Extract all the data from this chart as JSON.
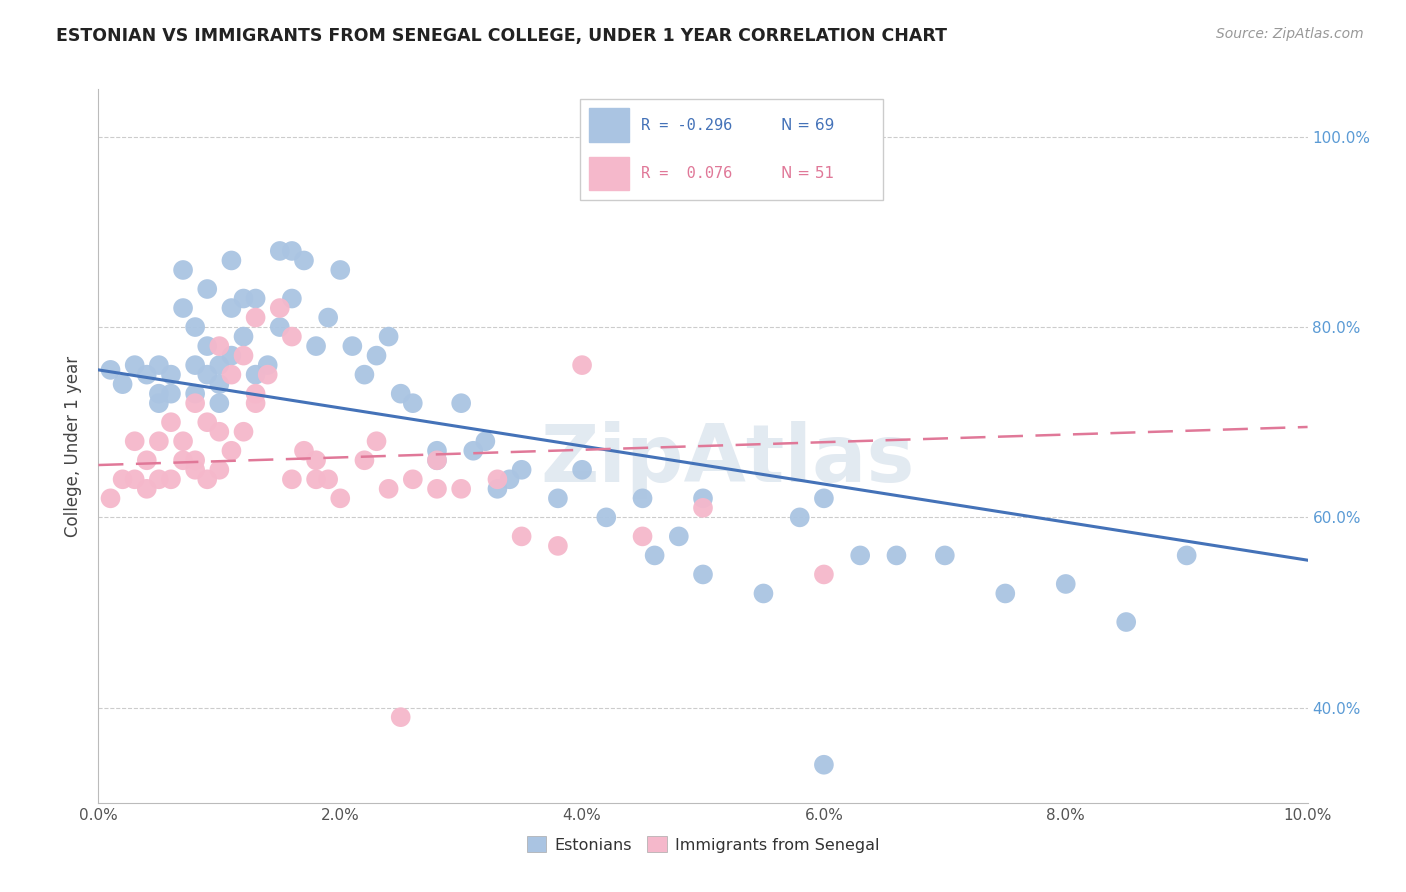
{
  "title": "ESTONIAN VS IMMIGRANTS FROM SENEGAL COLLEGE, UNDER 1 YEAR CORRELATION CHART",
  "source": "Source: ZipAtlas.com",
  "ylabel_label": "College, Under 1 year",
  "xlim": [
    0.0,
    0.1
  ],
  "ylim": [
    0.3,
    1.05
  ],
  "ylabel_ticks": [
    0.4,
    0.6,
    0.8,
    1.0
  ],
  "ylabel_tick_labels": [
    "40.0%",
    "60.0%",
    "80.0%",
    "100.0%"
  ],
  "xlabel_ticks": [
    0.0,
    0.02,
    0.04,
    0.06,
    0.08,
    0.1
  ],
  "xlabel_tick_labels": [
    "0.0%",
    "2.0%",
    "4.0%",
    "6.0%",
    "8.0%",
    "10.0%"
  ],
  "legend_labels": [
    "Estonians",
    "Immigrants from Senegal"
  ],
  "legend_R_blue": "R = -0.296",
  "legend_R_pink": "R =  0.076",
  "legend_N_blue": "N = 69",
  "legend_N_pink": "N = 51",
  "blue_color": "#aac4e2",
  "pink_color": "#f5b8cb",
  "blue_line_color": "#4472b8",
  "pink_line_color": "#e07898",
  "watermark": "ZipAtlas",
  "watermark_color": "#d0dce8",
  "figsize": [
    14.06,
    8.92
  ],
  "dpi": 100,
  "blue_scatter_x": [
    0.001,
    0.002,
    0.003,
    0.004,
    0.005,
    0.005,
    0.005,
    0.006,
    0.006,
    0.007,
    0.007,
    0.008,
    0.008,
    0.008,
    0.009,
    0.009,
    0.009,
    0.01,
    0.01,
    0.01,
    0.011,
    0.011,
    0.011,
    0.012,
    0.012,
    0.013,
    0.013,
    0.014,
    0.015,
    0.015,
    0.016,
    0.016,
    0.017,
    0.018,
    0.019,
    0.02,
    0.021,
    0.022,
    0.023,
    0.024,
    0.025,
    0.026,
    0.028,
    0.03,
    0.031,
    0.033,
    0.035,
    0.038,
    0.04,
    0.042,
    0.045,
    0.048,
    0.05,
    0.055,
    0.058,
    0.06,
    0.063,
    0.066,
    0.07,
    0.075,
    0.08,
    0.085,
    0.09,
    0.032,
    0.028,
    0.034,
    0.046,
    0.05,
    0.06
  ],
  "blue_scatter_y": [
    0.755,
    0.74,
    0.76,
    0.75,
    0.73,
    0.72,
    0.76,
    0.75,
    0.73,
    0.82,
    0.86,
    0.8,
    0.76,
    0.73,
    0.84,
    0.78,
    0.75,
    0.76,
    0.74,
    0.72,
    0.77,
    0.82,
    0.87,
    0.79,
    0.83,
    0.75,
    0.83,
    0.76,
    0.88,
    0.8,
    0.88,
    0.83,
    0.87,
    0.78,
    0.81,
    0.86,
    0.78,
    0.75,
    0.77,
    0.79,
    0.73,
    0.72,
    0.67,
    0.72,
    0.67,
    0.63,
    0.65,
    0.62,
    0.65,
    0.6,
    0.62,
    0.58,
    0.54,
    0.52,
    0.6,
    0.62,
    0.56,
    0.56,
    0.56,
    0.52,
    0.53,
    0.49,
    0.56,
    0.68,
    0.66,
    0.64,
    0.56,
    0.62,
    0.34
  ],
  "pink_scatter_x": [
    0.001,
    0.002,
    0.003,
    0.003,
    0.004,
    0.004,
    0.005,
    0.005,
    0.006,
    0.006,
    0.007,
    0.007,
    0.008,
    0.008,
    0.008,
    0.009,
    0.009,
    0.01,
    0.01,
    0.01,
    0.011,
    0.011,
    0.012,
    0.012,
    0.013,
    0.013,
    0.014,
    0.015,
    0.016,
    0.016,
    0.017,
    0.018,
    0.019,
    0.02,
    0.022,
    0.023,
    0.024,
    0.026,
    0.028,
    0.03,
    0.033,
    0.035,
    0.038,
    0.04,
    0.045,
    0.05,
    0.06,
    0.013,
    0.018,
    0.028,
    0.025
  ],
  "pink_scatter_y": [
    0.62,
    0.64,
    0.64,
    0.68,
    0.63,
    0.66,
    0.64,
    0.68,
    0.64,
    0.7,
    0.66,
    0.68,
    0.65,
    0.66,
    0.72,
    0.64,
    0.7,
    0.65,
    0.69,
    0.78,
    0.67,
    0.75,
    0.69,
    0.77,
    0.72,
    0.81,
    0.75,
    0.82,
    0.79,
    0.64,
    0.67,
    0.64,
    0.64,
    0.62,
    0.66,
    0.68,
    0.63,
    0.64,
    0.63,
    0.63,
    0.64,
    0.58,
    0.57,
    0.76,
    0.58,
    0.61,
    0.54,
    0.73,
    0.66,
    0.66,
    0.39
  ]
}
